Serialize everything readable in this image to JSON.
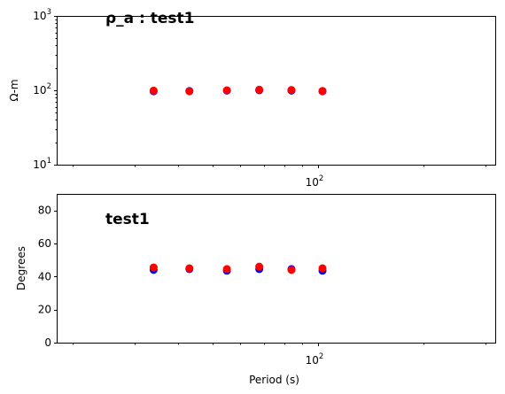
{
  "chart_data": [
    {
      "type": "scatter",
      "title": "ρ_a : test1",
      "xlabel": "",
      "ylabel": "Ω-m",
      "xscale": "log",
      "yscale": "log",
      "xlim": [
        18,
        320
      ],
      "ylim": [
        10,
        1000
      ],
      "xticks": [
        {
          "value": 100,
          "label": "10",
          "exp": "2"
        }
      ],
      "yticks": [
        {
          "value": 10,
          "label": "10",
          "exp": "1"
        },
        {
          "value": 100,
          "label": "10",
          "exp": "2"
        },
        {
          "value": 1000,
          "label": "10",
          "exp": "3"
        }
      ],
      "series": [
        {
          "color": "#0000ff",
          "x": [
            34,
            43,
            55,
            68,
            84,
            103
          ],
          "y": [
            97,
            98,
            99,
            100,
            99,
            97
          ]
        },
        {
          "color": "#ff0000",
          "x": [
            34,
            43,
            55,
            68,
            84,
            103
          ],
          "y": [
            99,
            97,
            100,
            102,
            101,
            98
          ]
        }
      ]
    },
    {
      "type": "scatter",
      "title": "test1",
      "xlabel": "Period (s)",
      "ylabel": "Degrees",
      "xscale": "log",
      "yscale": "linear",
      "xlim": [
        18,
        320
      ],
      "ylim": [
        0,
        90
      ],
      "xticks": [
        {
          "value": 100,
          "label": "10",
          "exp": "2"
        }
      ],
      "yticks": [
        {
          "value": 0,
          "label": "0"
        },
        {
          "value": 20,
          "label": "20"
        },
        {
          "value": 40,
          "label": "40"
        },
        {
          "value": 60,
          "label": "60"
        },
        {
          "value": 80,
          "label": "80"
        }
      ],
      "series": [
        {
          "color": "#0000ff",
          "x": [
            34,
            43,
            55,
            68,
            84,
            103
          ],
          "y": [
            44,
            44.5,
            43.5,
            44.5,
            44.5,
            43.5
          ]
        },
        {
          "color": "#ff0000",
          "x": [
            34,
            43,
            55,
            68,
            84,
            103
          ],
          "y": [
            45.5,
            45,
            44.5,
            46,
            44,
            45
          ]
        }
      ]
    }
  ]
}
